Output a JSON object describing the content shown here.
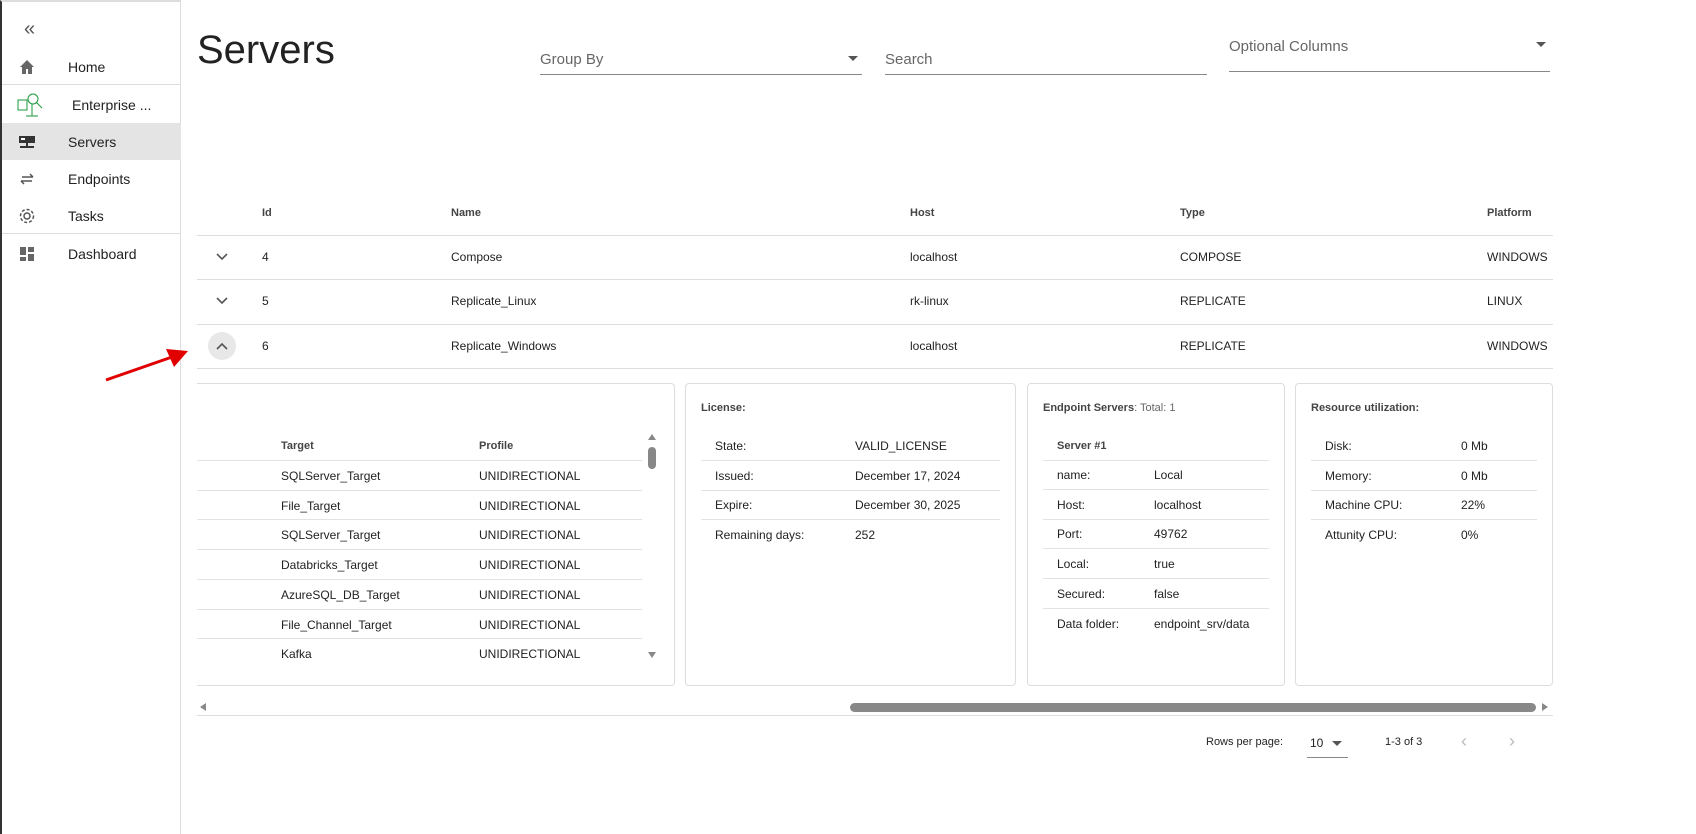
{
  "sidebar": {
    "items": [
      {
        "label": "Home",
        "icon": "home-icon"
      },
      {
        "label": "Enterprise ...",
        "icon": "enterprise-logo-icon"
      },
      {
        "label": "Servers",
        "icon": "server-icon",
        "active": true
      },
      {
        "label": "Endpoints",
        "icon": "arrows-swap-icon"
      },
      {
        "label": "Tasks",
        "icon": "gear-icon"
      },
      {
        "label": "Dashboard",
        "icon": "dashboard-icon"
      }
    ]
  },
  "page": {
    "title": "Servers"
  },
  "filters": {
    "group_by": "Group By",
    "search_placeholder": "Search",
    "optional_columns": "Optional Columns"
  },
  "table": {
    "columns": [
      "Id",
      "Name",
      "Host",
      "Type",
      "Platform"
    ],
    "rows": [
      [
        "4",
        "Compose",
        "localhost",
        "COMPOSE",
        "WINDOWS"
      ],
      [
        "5",
        "Replicate_Linux",
        "rk-linux",
        "REPLICATE",
        "LINUX"
      ],
      [
        "6",
        "Replicate_Windows",
        "localhost",
        "REPLICATE",
        "WINDOWS"
      ]
    ],
    "expanded_row": "6"
  },
  "targets": {
    "columns": [
      "Target",
      "Profile"
    ],
    "rows": [
      [
        "SQLServer_Target",
        "UNIDIRECTIONAL"
      ],
      [
        "File_Target",
        "UNIDIRECTIONAL"
      ],
      [
        "SQLServer_Target",
        "UNIDIRECTIONAL"
      ],
      [
        "Databricks_Target",
        "UNIDIRECTIONAL"
      ],
      [
        "AzureSQL_DB_Target",
        "UNIDIRECTIONAL"
      ],
      [
        "File_Channel_Target",
        "UNIDIRECTIONAL"
      ],
      [
        "Kafka",
        "UNIDIRECTIONAL"
      ]
    ]
  },
  "license": {
    "title": "License:",
    "fields": [
      [
        "State:",
        "VALID_LICENSE"
      ],
      [
        "Issued:",
        "December 17, 2024"
      ],
      [
        "Expire:",
        "December 30, 2025"
      ],
      [
        "Remaining days:",
        "252"
      ]
    ]
  },
  "endpoint_servers": {
    "title": "Endpoint Servers",
    "total": ": Total: 1",
    "server_label": "Server #1",
    "fields": [
      [
        "name:",
        "Local"
      ],
      [
        "Host:",
        "localhost"
      ],
      [
        "Port:",
        "49762"
      ],
      [
        "Local:",
        "true"
      ],
      [
        "Secured:",
        "false"
      ],
      [
        "Data folder:",
        "endpoint_srv/data"
      ]
    ]
  },
  "resources": {
    "title": "Resource utilization:",
    "fields": [
      [
        "Disk:",
        "0 Mb"
      ],
      [
        "Memory:",
        "0 Mb"
      ],
      [
        "Machine CPU:",
        "22%"
      ],
      [
        "Attunity CPU:",
        "0%"
      ]
    ]
  },
  "pagination": {
    "rows_per_page_label": "Rows per page:",
    "rows_per_page": "10",
    "range": "1-3 of 3"
  },
  "colors": {
    "active_nav": "#e4e4e4",
    "annotation_arrow": "#e00000",
    "logo_green": "#1a9a3a"
  }
}
